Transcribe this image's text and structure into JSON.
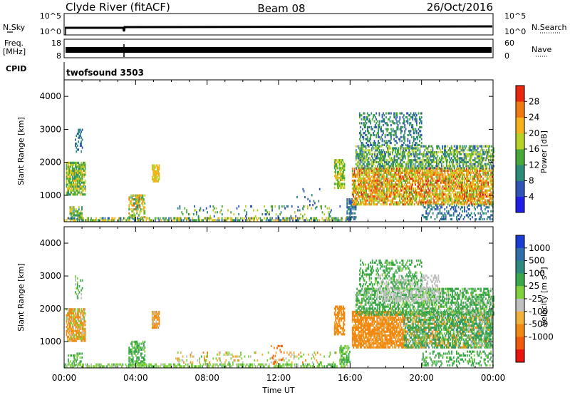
{
  "header": {
    "station": "Clyde River (fitACF)",
    "beam": "Beam 08",
    "date": "26/Oct/2016"
  },
  "top_panels": {
    "nsky_label": "N.Sky",
    "nsky_ticks": [
      "10^5",
      "10^0"
    ],
    "nsearch_label": "N.Search",
    "nsearch_ticks": [
      "10^5",
      "10^0"
    ],
    "freq_label": "Freq.",
    "freq_unit": "[MHz]",
    "freq_ticks": [
      "18",
      "8"
    ],
    "nave_label": "Nave",
    "nave_ticks": [
      "60",
      "0"
    ],
    "cpid_label": "CPID",
    "cpid_value": "twofsound 3503"
  },
  "chart_data": [
    {
      "type": "heatmap",
      "name": "power",
      "ylabel": "Slant Range [km]",
      "ylim": [
        200,
        4500
      ],
      "yticks": [
        "1000",
        "2000",
        "3000",
        "4000"
      ],
      "xlim_hours": [
        0,
        24
      ],
      "xticks": [
        "00:00",
        "04:00",
        "08:00",
        "12:00",
        "16:00",
        "20:00",
        "00:00"
      ],
      "colorbar": {
        "label": "Power [dB]",
        "ticks": [
          "4",
          "8",
          "12",
          "16",
          "20",
          "24",
          "28"
        ],
        "colors": [
          "#1e1ee6",
          "#2f55b4",
          "#2e8b7a",
          "#49a83a",
          "#b8d228",
          "#f4b21c",
          "#f07a12",
          "#e8280f"
        ]
      },
      "regions": [
        {
          "t": [
            0.1,
            1.2
          ],
          "r": [
            1000,
            2000
          ],
          "v": [
            10,
            22
          ],
          "d": 0.8
        },
        {
          "t": [
            0.3,
            1.0
          ],
          "r": [
            250,
            650
          ],
          "v": [
            8,
            22
          ],
          "d": 0.55
        },
        {
          "t": [
            0.6,
            1.0
          ],
          "r": [
            2300,
            3000
          ],
          "v": [
            4,
            12
          ],
          "d": 0.35
        },
        {
          "t": [
            3.6,
            4.5
          ],
          "r": [
            250,
            1000
          ],
          "v": [
            10,
            26
          ],
          "d": 0.55
        },
        {
          "t": [
            4.9,
            5.3
          ],
          "r": [
            1400,
            1900
          ],
          "v": [
            16,
            24
          ],
          "d": 0.8
        },
        {
          "t": [
            0.0,
            15.9
          ],
          "r": [
            220,
            340
          ],
          "v": [
            4,
            24
          ],
          "d": 0.5
        },
        {
          "t": [
            6.0,
            15.5
          ],
          "r": [
            340,
            650
          ],
          "v": [
            4,
            20
          ],
          "d": 0.12
        },
        {
          "t": [
            13.0,
            14.5
          ],
          "r": [
            500,
            1200
          ],
          "v": [
            4,
            12
          ],
          "d": 0.05
        },
        {
          "t": [
            15.1,
            15.7
          ],
          "r": [
            1200,
            2100
          ],
          "v": [
            12,
            22
          ],
          "d": 0.7
        },
        {
          "t": [
            15.8,
            16.3
          ],
          "r": [
            250,
            900
          ],
          "v": [
            4,
            10
          ],
          "d": 0.6
        },
        {
          "t": [
            16.1,
            24.0
          ],
          "r": [
            700,
            1800
          ],
          "v": [
            14,
            30
          ],
          "d": 0.72
        },
        {
          "t": [
            16.3,
            24.0
          ],
          "r": [
            1800,
            2500
          ],
          "v": [
            6,
            20
          ],
          "d": 0.55
        },
        {
          "t": [
            16.5,
            20.0
          ],
          "r": [
            2500,
            3500
          ],
          "v": [
            4,
            16
          ],
          "d": 0.35
        },
        {
          "t": [
            20.0,
            24.0
          ],
          "r": [
            250,
            700
          ],
          "v": [
            4,
            12
          ],
          "d": 0.25
        }
      ]
    },
    {
      "type": "heatmap",
      "name": "velocity",
      "ylabel": "Slant Range [km]",
      "ylim": [
        200,
        4500
      ],
      "yticks": [
        "1000",
        "2000",
        "3000",
        "4000"
      ],
      "xlabel": "Time UT",
      "xlim_hours": [
        0,
        24
      ],
      "xticks": [
        "00:00",
        "04:00",
        "08:00",
        "12:00",
        "16:00",
        "20:00",
        "00:00"
      ],
      "colorbar": {
        "label": "Velocity [m s",
        "label_sup": "-1",
        "label_end": "]",
        "ticks": [
          "1000",
          "500",
          "100",
          "25",
          "-25",
          "-100",
          "-500",
          "-1000"
        ],
        "colors": [
          "#1a3cd0",
          "#2f6ea8",
          "#2f8a7e",
          "#3aa84a",
          "#7fd23c",
          "#c0c0c0",
          "#f0b23c",
          "#f08a14",
          "#f05a0e",
          "#e81410"
        ]
      },
      "regions": [
        {
          "t": [
            0.1,
            1.2
          ],
          "r": [
            1000,
            2000
          ],
          "v": [
            -300,
            100
          ],
          "d": 0.8
        },
        {
          "t": [
            0.2,
            1.0
          ],
          "r": [
            250,
            650
          ],
          "v": [
            50,
            200
          ],
          "d": 0.45
        },
        {
          "t": [
            0.6,
            1.0
          ],
          "r": [
            2300,
            3000
          ],
          "v": [
            -50,
            200
          ],
          "d": 0.3
        },
        {
          "t": [
            3.6,
            4.5
          ],
          "r": [
            250,
            1000
          ],
          "v": [
            50,
            300
          ],
          "d": 0.5
        },
        {
          "t": [
            4.9,
            5.3
          ],
          "r": [
            1400,
            1900
          ],
          "v": [
            -200,
            0
          ],
          "d": 0.8
        },
        {
          "t": [
            0.0,
            15.9
          ],
          "r": [
            220,
            340
          ],
          "v": [
            10,
            120
          ],
          "d": 0.5
        },
        {
          "t": [
            6.0,
            15.5
          ],
          "r": [
            340,
            650
          ],
          "v": [
            -150,
            120
          ],
          "d": 0.15
        },
        {
          "t": [
            11.5,
            12.2
          ],
          "r": [
            300,
            900
          ],
          "v": [
            -900,
            -300
          ],
          "d": 0.2
        },
        {
          "t": [
            15.1,
            15.7
          ],
          "r": [
            1200,
            2100
          ],
          "v": [
            -300,
            -60
          ],
          "d": 0.7
        },
        {
          "t": [
            15.4,
            16.0
          ],
          "r": [
            300,
            900
          ],
          "v": [
            50,
            200
          ],
          "d": 0.5
        },
        {
          "t": [
            16.1,
            19.0
          ],
          "r": [
            800,
            1900
          ],
          "v": [
            -350,
            -60
          ],
          "d": 0.78
        },
        {
          "t": [
            19.0,
            24.0
          ],
          "r": [
            800,
            1900
          ],
          "v": [
            -200,
            600
          ],
          "d": 0.7
        },
        {
          "t": [
            16.3,
            24.0
          ],
          "r": [
            1800,
            2600
          ],
          "v": [
            -30,
            400
          ],
          "d": 0.55
        },
        {
          "t": [
            17.5,
            21.0
          ],
          "r": [
            2200,
            3000
          ],
          "v": [
            -20,
            20
          ],
          "d": 0.35
        },
        {
          "t": [
            16.5,
            20.0
          ],
          "r": [
            2600,
            3500
          ],
          "v": [
            30,
            400
          ],
          "d": 0.3
        },
        {
          "t": [
            20.0,
            24.0
          ],
          "r": [
            250,
            700
          ],
          "v": [
            50,
            400
          ],
          "d": 0.25
        }
      ]
    }
  ]
}
